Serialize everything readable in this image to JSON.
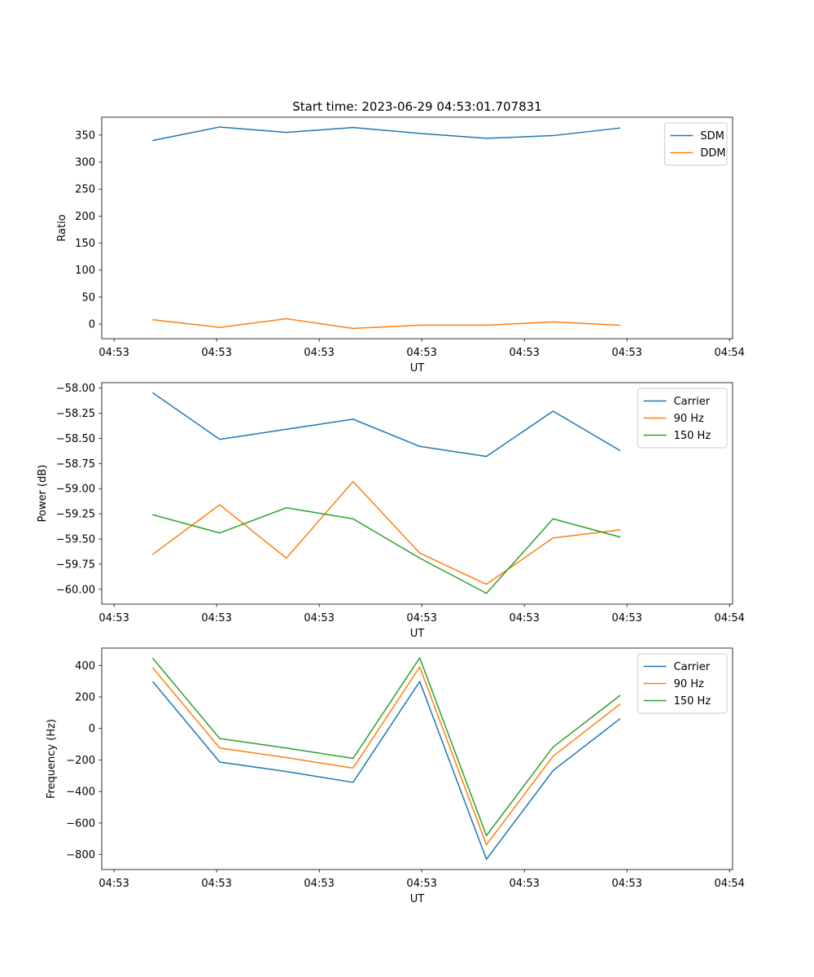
{
  "figure": {
    "title": "Start time: 2023-06-29 04:53:01.707831"
  },
  "chart_data": [
    {
      "type": "line",
      "xlabel": "UT",
      "ylabel": "Ratio",
      "x_ticks": [
        "04:53",
        "04:53",
        "04:53",
        "04:53",
        "04:53",
        "04:53",
        "04:54"
      ],
      "xlim": [
        0,
        6.15
      ],
      "ylim": [
        -27,
        383
      ],
      "y_ticks": [
        0,
        50,
        100,
        150,
        200,
        250,
        300,
        350
      ],
      "legend_position": "top-right",
      "grid": false,
      "x": [
        0.5,
        1.15,
        1.8,
        2.45,
        3.1,
        3.75,
        4.4,
        5.05
      ],
      "series": [
        {
          "name": "SDM",
          "color": "#1f77b4",
          "values": [
            340,
            365,
            355,
            364,
            353,
            344,
            349,
            363
          ]
        },
        {
          "name": "DDM",
          "color": "#ff7f0e",
          "values": [
            8,
            -6,
            10,
            -8,
            -2,
            -2,
            4,
            -2
          ]
        }
      ]
    },
    {
      "type": "line",
      "xlabel": "UT",
      "ylabel": "Power (dB)",
      "x_ticks": [
        "04:53",
        "04:53",
        "04:53",
        "04:53",
        "04:53",
        "04:53",
        "04:54"
      ],
      "xlim": [
        0,
        6.15
      ],
      "ylim": [
        -60.147,
        -57.947
      ],
      "y_ticks": [
        -60.0,
        -59.75,
        -59.5,
        -59.25,
        -59.0,
        -58.75,
        -58.5,
        -58.25,
        -58.0
      ],
      "y_tick_labels": [
        "−60.00",
        "−59.75",
        "−59.50",
        "−59.25",
        "−59.00",
        "−58.75",
        "−58.50",
        "−58.25",
        "−58.00"
      ],
      "legend_position": "top-right",
      "grid": false,
      "x": [
        0.5,
        1.15,
        1.8,
        2.45,
        3.1,
        3.75,
        4.4,
        5.05
      ],
      "series": [
        {
          "name": "Carrier",
          "color": "#1f77b4",
          "values": [
            -58.05,
            -58.51,
            -58.41,
            -58.31,
            -58.58,
            -58.68,
            -58.23,
            -58.62
          ]
        },
        {
          "name": "90 Hz",
          "color": "#ff7f0e",
          "values": [
            -59.65,
            -59.16,
            -59.69,
            -58.93,
            -59.64,
            -59.95,
            -59.49,
            -59.41
          ]
        },
        {
          "name": "150 Hz",
          "color": "#2ca02c",
          "values": [
            -59.26,
            -59.44,
            -59.19,
            -59.3,
            -59.69,
            -60.04,
            -59.3,
            -59.48
          ]
        }
      ]
    },
    {
      "type": "line",
      "xlabel": "UT",
      "ylabel": "Frequency (Hz)",
      "x_ticks": [
        "04:53",
        "04:53",
        "04:53",
        "04:53",
        "04:53",
        "04:53",
        "04:54"
      ],
      "xlim": [
        0,
        6.15
      ],
      "ylim": [
        -895,
        510
      ],
      "y_ticks": [
        -800,
        -600,
        -400,
        -200,
        0,
        200,
        400
      ],
      "y_tick_labels": [
        "−800",
        "−600",
        "−400",
        "−200",
        "0",
        "200",
        "400"
      ],
      "legend_position": "top-right",
      "grid": false,
      "x": [
        0.5,
        1.15,
        1.8,
        2.45,
        3.1,
        3.75,
        4.4,
        5.05
      ],
      "series": [
        {
          "name": "Carrier",
          "color": "#1f77b4",
          "values": [
            295,
            -213,
            -273,
            -342,
            298,
            -830,
            -267,
            60
          ]
        },
        {
          "name": "90 Hz",
          "color": "#ff7f0e",
          "values": [
            383,
            -124,
            -185,
            -251,
            390,
            -738,
            -176,
            153
          ]
        },
        {
          "name": "150 Hz",
          "color": "#2ca02c",
          "values": [
            443,
            -64,
            -124,
            -190,
            448,
            -680,
            -118,
            208
          ]
        }
      ]
    }
  ]
}
